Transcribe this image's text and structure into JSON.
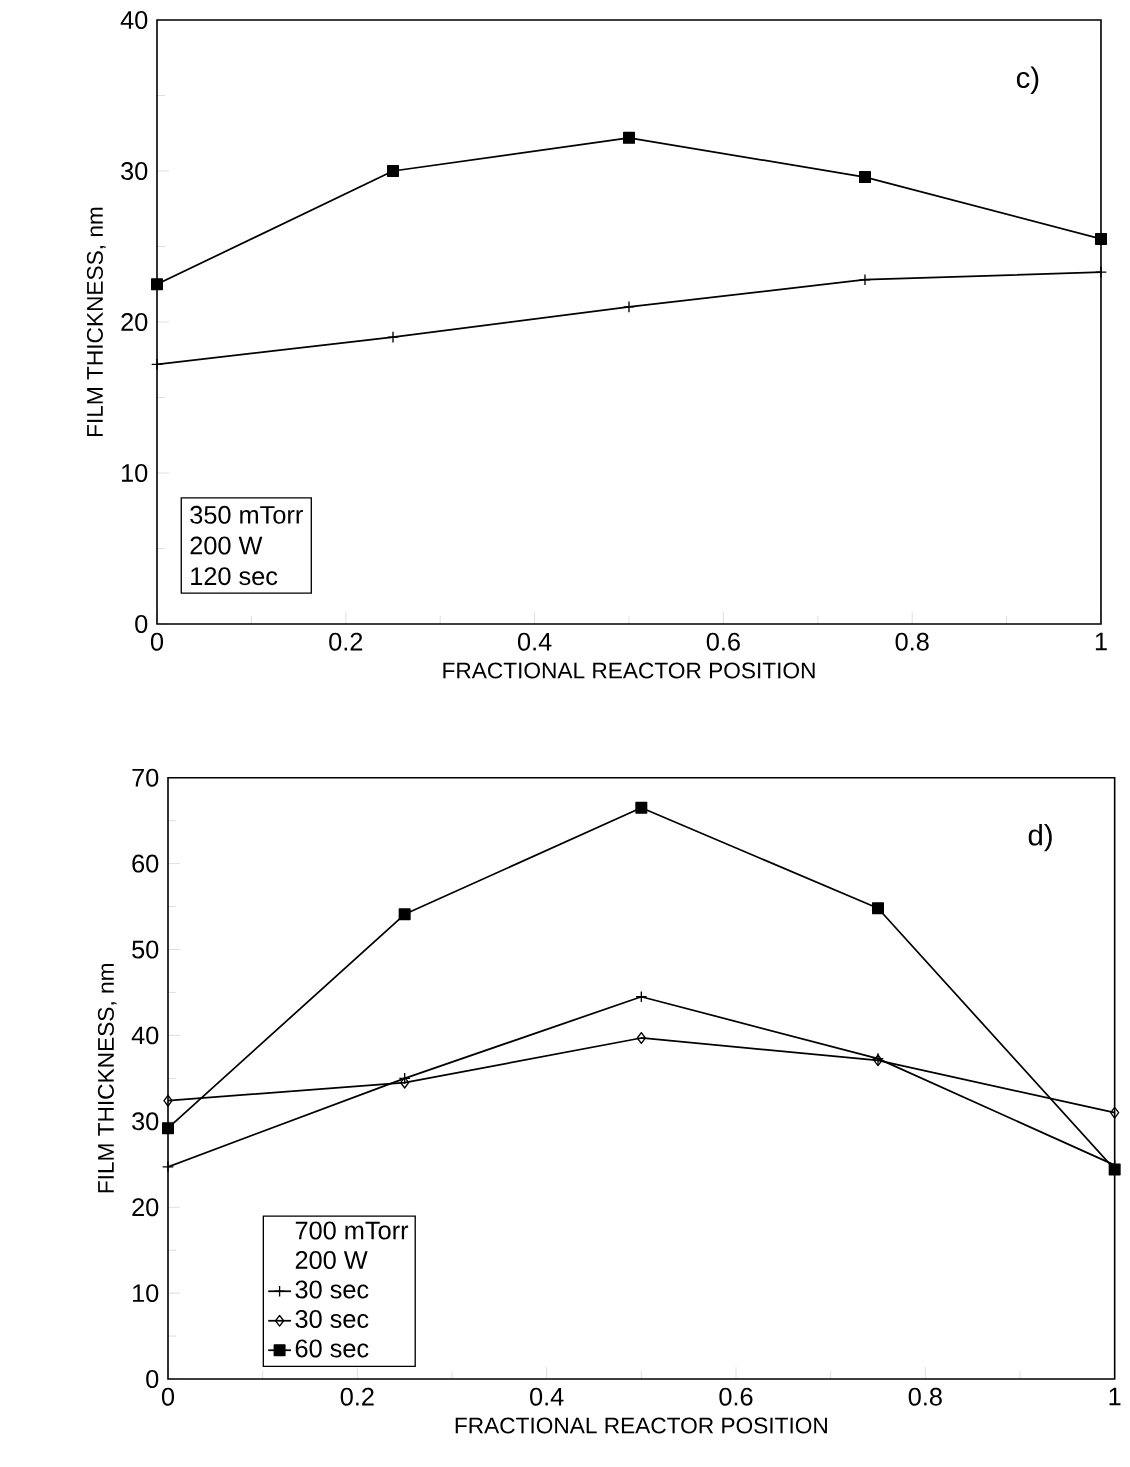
{
  "chart_data": [
    {
      "type": "line",
      "xlabel": "FRACTIONAL REACTOR POSITION",
      "ylabel": "FILM THICKNESS, nm",
      "x": [
        0,
        0.25,
        0.5,
        0.75,
        1
      ],
      "xlim": [
        0,
        1
      ],
      "ylim": [
        0,
        40
      ],
      "xticks": [
        0,
        0.2,
        0.4,
        0.6,
        0.8,
        1
      ],
      "yticks": [
        0,
        10,
        20,
        30,
        40
      ],
      "grid": false,
      "legend": false,
      "line_style": "solid",
      "annotations": [
        "c)",
        "350 mTorr",
        "200 W",
        "120 sec"
      ],
      "series": [
        {
          "color": "#000000",
          "marker": "square",
          "values": [
            22.5,
            30.0,
            32.2,
            29.6,
            25.5
          ]
        },
        {
          "color": "#000000",
          "marker": "cross",
          "values": [
            17.2,
            19.0,
            21.0,
            22.8,
            23.3
          ]
        }
      ]
    },
    {
      "type": "line",
      "xlabel": "FRACTIONAL REACTOR POSITION",
      "ylabel": "FILM THICKNESS, nm",
      "x": [
        0,
        0.25,
        0.5,
        0.75,
        1
      ],
      "xlim": [
        0,
        1
      ],
      "ylim": [
        0,
        70
      ],
      "xticks": [
        0,
        0.2,
        0.4,
        0.6,
        0.8,
        1
      ],
      "yticks": [
        0,
        10,
        20,
        30,
        40,
        50,
        60,
        70
      ],
      "grid": false,
      "legend": "bottom left",
      "line_style": "solid",
      "annotations": [
        "d)",
        "700 mTorr",
        "200 W"
      ],
      "series": [
        {
          "name": "30 sec",
          "color": "#000000",
          "marker": "cross",
          "values": [
            24.7,
            35.0,
            44.5,
            37.3,
            24.9
          ]
        },
        {
          "name": "30 sec",
          "color": "#000000",
          "marker": "diamond",
          "values": [
            32.4,
            34.5,
            39.7,
            37.1,
            31.0
          ]
        },
        {
          "name": "60 sec",
          "color": "#000000",
          "marker": "square",
          "values": [
            29.2,
            54.1,
            66.5,
            54.8,
            24.4
          ]
        }
      ]
    }
  ]
}
